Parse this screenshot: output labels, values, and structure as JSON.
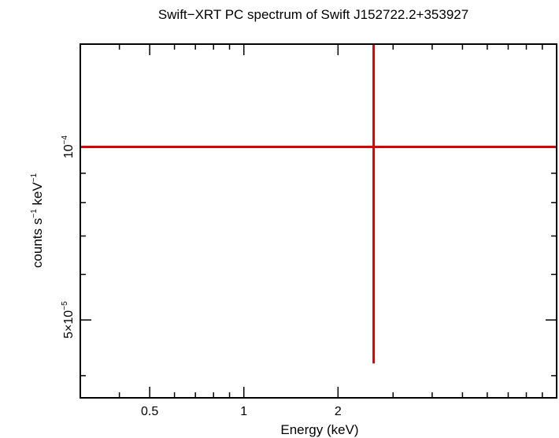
{
  "chart_data": {
    "type": "scatter",
    "title": "Swift−XRT PC spectrum of Swift J152722.2+353927",
    "xlabel": "Energy (keV)",
    "ylabel": {
      "base1": "counts s",
      "sup1": "−1",
      "base2": " keV",
      "sup2": "−1"
    },
    "x_scale": "log",
    "y_scale": "log",
    "xlim": [
      0.3,
      10.0
    ],
    "ylim": [
      3.66e-05,
      0.000151
    ],
    "x_ticks": [
      {
        "value": 0.5,
        "label": "0.5"
      },
      {
        "value": 1,
        "label": "1"
      },
      {
        "value": 2,
        "label": "2"
      }
    ],
    "y_ticks": [
      {
        "value": 5e-05,
        "label_base": "5×10",
        "label_sup": "−5"
      },
      {
        "value": 0.0001,
        "label_base": "10",
        "label_sup": "−4"
      }
    ],
    "series": [
      {
        "name": "PC spectrum",
        "color": "#dd0000",
        "points": [
          {
            "x": 2.6,
            "y": 0.0001,
            "x_low": 0.3,
            "x_high": 10.0,
            "y_low": 4.2e-05,
            "y_high": 0.000151
          }
        ]
      }
    ]
  }
}
